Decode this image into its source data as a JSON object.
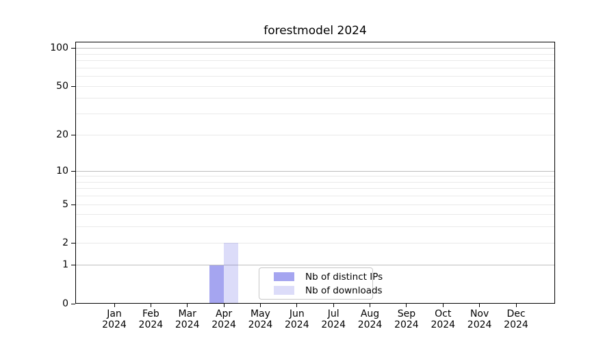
{
  "chart_data": {
    "type": "bar",
    "title": "forestmodel 2024",
    "categories": [
      "Jan",
      "Feb",
      "Mar",
      "Apr",
      "May",
      "Jun",
      "Jul",
      "Aug",
      "Sep",
      "Oct",
      "Nov",
      "Dec"
    ],
    "category_year": "2024",
    "series": [
      {
        "name": "Nb of distinct IPs",
        "color": "rgba(91,91,228,0.55)",
        "color_hex": "#a4a4f0",
        "values": [
          0,
          0,
          0,
          1,
          0,
          0,
          0,
          0,
          0,
          0,
          0,
          0
        ]
      },
      {
        "name": "Nb of downloads",
        "color": "rgba(91,91,228,0.21)",
        "color_hex": "#dcdcf9",
        "values": [
          0,
          0,
          0,
          2,
          0,
          0,
          0,
          0,
          0,
          0,
          0,
          0
        ]
      }
    ],
    "yscale": "log1p",
    "y_tick_labels": [
      "0",
      "1",
      "2",
      "5",
      "10",
      "20",
      "50",
      "100"
    ],
    "y_tick_values": [
      0,
      1,
      2,
      5,
      10,
      20,
      50,
      100
    ],
    "ylim": [
      0,
      113
    ],
    "grid": "horizontal, major and minor, behind bars",
    "legend_position": "inside lower center",
    "xlabel": "",
    "ylabel": ""
  },
  "colors": {
    "major_grid": "#bcbcbc",
    "minor_grid": "#e9e9e9",
    "axis": "#000000",
    "text": "#000000",
    "legend_border": "#c6c6c6",
    "background": "#ffffff"
  }
}
